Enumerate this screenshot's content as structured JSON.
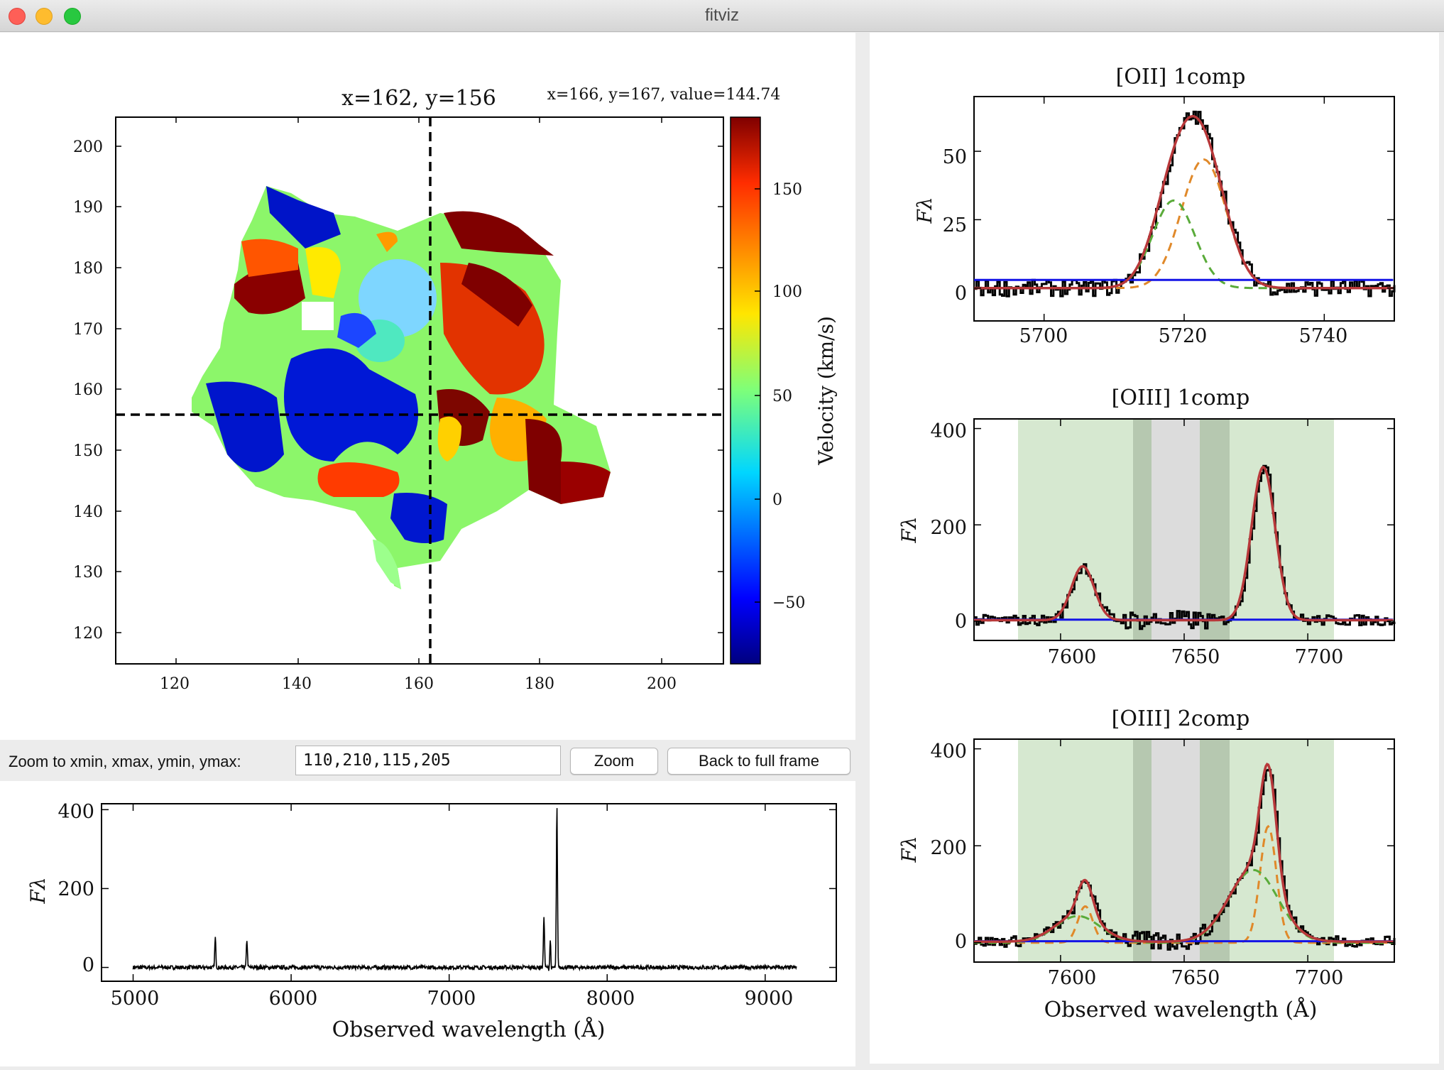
{
  "window": {
    "title": "fitviz"
  },
  "map": {
    "title": "x=162, y=156",
    "readout": "x=166, y=167, value=144.74",
    "xticks": [
      "120",
      "140",
      "160",
      "180",
      "200"
    ],
    "yticks": [
      "200",
      "190",
      "180",
      "170",
      "160",
      "150",
      "140",
      "130",
      "120"
    ],
    "colorbar_label": "Velocity (km/s)",
    "colorbar_ticks": [
      "150",
      "100",
      "50",
      "0",
      "−50"
    ]
  },
  "toolbar": {
    "zoom_label": "Zoom to xmin, xmax, ymin, ymax:",
    "zoom_value": "110,210,115,205",
    "zoom_button": "Zoom",
    "full_button": "Back to full frame"
  },
  "chart_data": [
    {
      "type": "line",
      "name": "full-spectrum",
      "xlabel": "Observed wavelength (Å)",
      "ylabel": "Fλ",
      "xlim": [
        4800,
        9450
      ],
      "ylim": [
        -35,
        415
      ],
      "xticks": [
        "5000",
        "6000",
        "7000",
        "8000",
        "9000"
      ],
      "yticks": [
        "400",
        "200",
        "0"
      ],
      "peaks": [
        [
          5520,
          75
        ],
        [
          5720,
          70
        ],
        [
          7600,
          130
        ],
        [
          7640,
          90
        ],
        [
          7682,
          405
        ]
      ]
    },
    {
      "type": "line",
      "title": "[OII] 1comp",
      "xlabel": "",
      "ylabel": "Fλ",
      "xlim": [
        5690,
        5750
      ],
      "ylim": [
        -12,
        70
      ],
      "xticks": [
        "5700",
        "5720",
        "5740"
      ],
      "yticks": [
        "50",
        "25",
        "0"
      ],
      "series_colors": [
        "#000000",
        "#b8383a",
        "#e0892a",
        "#5aab3a",
        "#1414e6"
      ]
    },
    {
      "type": "line",
      "title": "[OIII] 1comp",
      "xlabel": "",
      "ylabel": "Fλ",
      "xlim": [
        7565,
        7735
      ],
      "ylim": [
        -40,
        420
      ],
      "xticks": [
        "7600",
        "7650",
        "7700"
      ],
      "yticks": [
        "400",
        "200",
        "0"
      ],
      "series_colors": [
        "#000000",
        "#b8383a",
        "#1414e6"
      ]
    },
    {
      "type": "line",
      "title": "[OIII] 2comp",
      "xlabel": "Observed wavelength (Å)",
      "ylabel": "Fλ",
      "xlim": [
        7565,
        7735
      ],
      "ylim": [
        -40,
        420
      ],
      "xticks": [
        "7600",
        "7650",
        "7700"
      ],
      "yticks": [
        "400",
        "200",
        "0"
      ],
      "series_colors": [
        "#000000",
        "#b8383a",
        "#e0892a",
        "#5aab3a",
        "#1414e6"
      ]
    }
  ]
}
